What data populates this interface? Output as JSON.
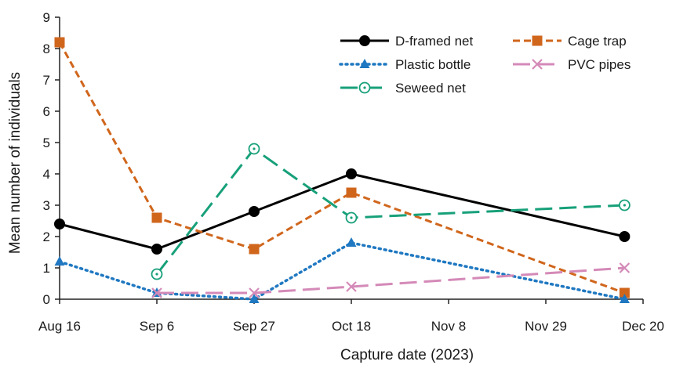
{
  "chart_data": {
    "type": "line",
    "xlabel": "Capture date (2023)",
    "ylabel": "Mean number of individuals",
    "ylim": [
      0,
      9
    ],
    "yticks": [
      0,
      1,
      2,
      3,
      4,
      5,
      6,
      7,
      8,
      9
    ],
    "x_domain": [
      "2023-08-16",
      "2023-12-20"
    ],
    "xticks": [
      {
        "date": "2023-08-16",
        "label": "Aug 16"
      },
      {
        "date": "2023-09-06",
        "label": "Sep 6"
      },
      {
        "date": "2023-09-27",
        "label": "Sep 27"
      },
      {
        "date": "2023-10-18",
        "label": "Oct 18"
      },
      {
        "date": "2023-11-08",
        "label": "Nov 8"
      },
      {
        "date": "2023-11-29",
        "label": "Nov 29"
      },
      {
        "date": "2023-12-20",
        "label": "Dec 20"
      }
    ],
    "legend_position": "top-right",
    "grid": false,
    "series": [
      {
        "name": "D-framed net",
        "color": "#000000",
        "dash": "solid",
        "marker": "circle-filled",
        "points": [
          {
            "x": "2023-08-16",
            "y": 2.4
          },
          {
            "x": "2023-09-06",
            "y": 1.6
          },
          {
            "x": "2023-09-27",
            "y": 2.8
          },
          {
            "x": "2023-10-18",
            "y": 4.0
          },
          {
            "x": "2023-12-16",
            "y": 2.0
          }
        ]
      },
      {
        "name": "Cage trap",
        "color": "#d0661c",
        "dash": "short-dash",
        "marker": "square",
        "points": [
          {
            "x": "2023-08-16",
            "y": 8.2
          },
          {
            "x": "2023-09-06",
            "y": 2.6
          },
          {
            "x": "2023-09-27",
            "y": 1.6
          },
          {
            "x": "2023-10-18",
            "y": 3.4
          },
          {
            "x": "2023-12-16",
            "y": 0.2
          }
        ]
      },
      {
        "name": "Plastic bottle",
        "color": "#1f78c1",
        "dash": "dotted",
        "marker": "triangle",
        "points": [
          {
            "x": "2023-08-16",
            "y": 1.2
          },
          {
            "x": "2023-09-06",
            "y": 0.2
          },
          {
            "x": "2023-09-27",
            "y": 0.0
          },
          {
            "x": "2023-10-18",
            "y": 1.8
          },
          {
            "x": "2023-12-16",
            "y": 0.0
          }
        ]
      },
      {
        "name": "PVC pipes",
        "color": "#d48ab8",
        "dash": "long-dash",
        "marker": "x",
        "points": [
          {
            "x": "2023-09-06",
            "y": 0.2
          },
          {
            "x": "2023-09-27",
            "y": 0.2
          },
          {
            "x": "2023-10-18",
            "y": 0.4
          },
          {
            "x": "2023-12-16",
            "y": 1.0
          }
        ]
      },
      {
        "name": "Seweed net",
        "color": "#17a07a",
        "dash": "long-dash",
        "marker": "circle-open",
        "points": [
          {
            "x": "2023-09-06",
            "y": 0.8
          },
          {
            "x": "2023-09-27",
            "y": 4.8
          },
          {
            "x": "2023-10-18",
            "y": 2.6
          },
          {
            "x": "2023-12-16",
            "y": 3.0
          }
        ]
      }
    ]
  }
}
